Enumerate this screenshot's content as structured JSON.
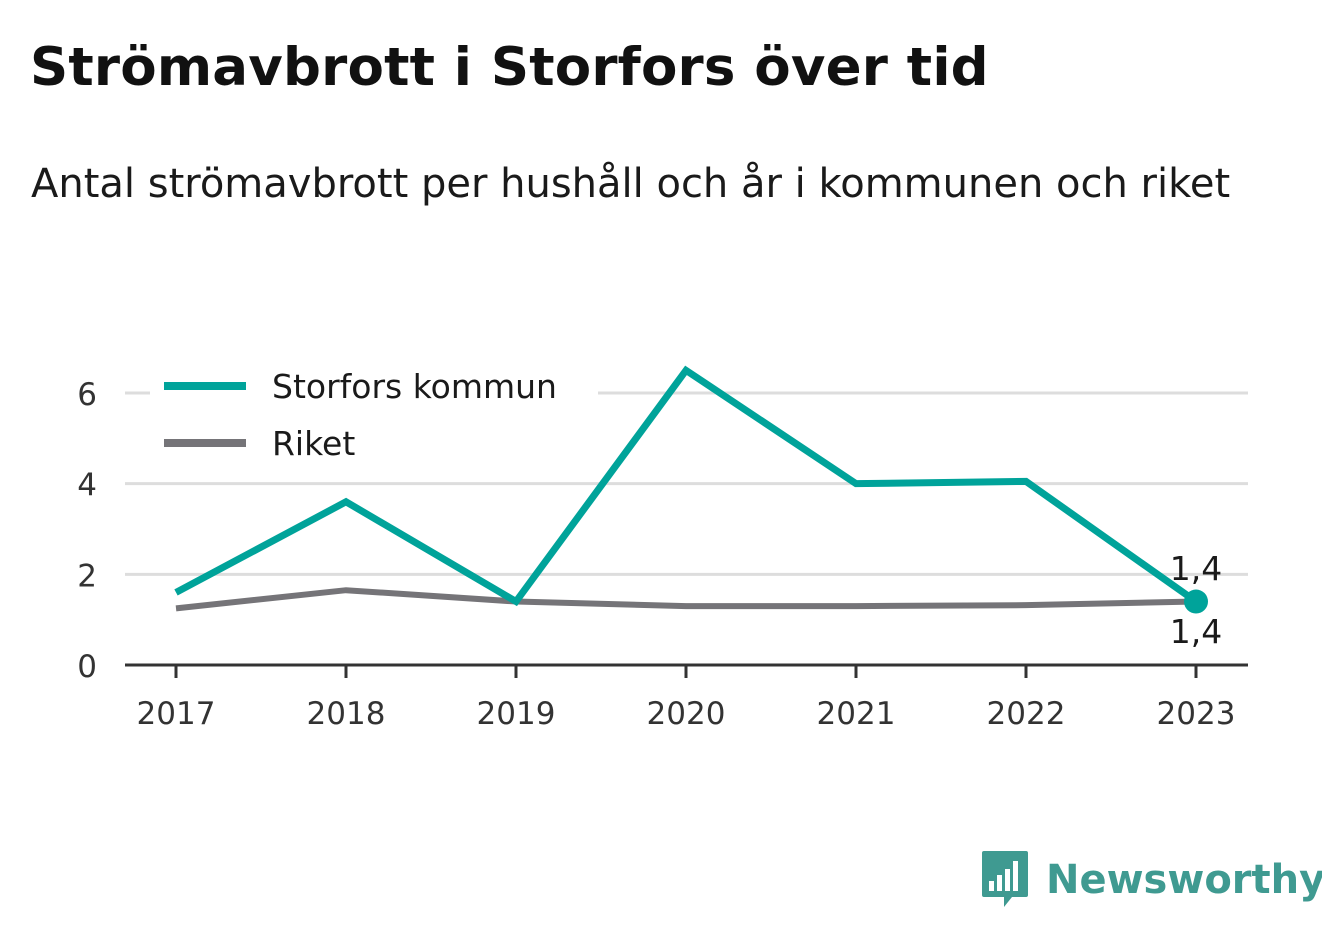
{
  "header": {
    "title": "Strömavbrott i Storfors över tid",
    "subtitle": "Antal strömavbrott per hushåll och år i kommunen och riket"
  },
  "brand": {
    "name": "Newsworthy",
    "icon": "bar-chart-speech-bubble-icon",
    "color": "#3f9a91"
  },
  "chart_data": {
    "type": "line",
    "x": [
      "2017",
      "2018",
      "2019",
      "2020",
      "2021",
      "2022",
      "2023"
    ],
    "series": [
      {
        "name": "Storfors kommun",
        "color": "#00a39a",
        "values": [
          1.6,
          3.6,
          1.4,
          6.5,
          4.0,
          4.05,
          1.4
        ],
        "end_label": "1,4"
      },
      {
        "name": "Riket",
        "color": "#757478",
        "values": [
          1.25,
          1.65,
          1.4,
          1.3,
          1.3,
          1.32,
          1.4
        ],
        "end_label": "1,4"
      }
    ],
    "yticks": [
      0,
      2,
      4,
      6
    ],
    "ylim": [
      0,
      7
    ],
    "grid": true,
    "legend": "top-left"
  }
}
